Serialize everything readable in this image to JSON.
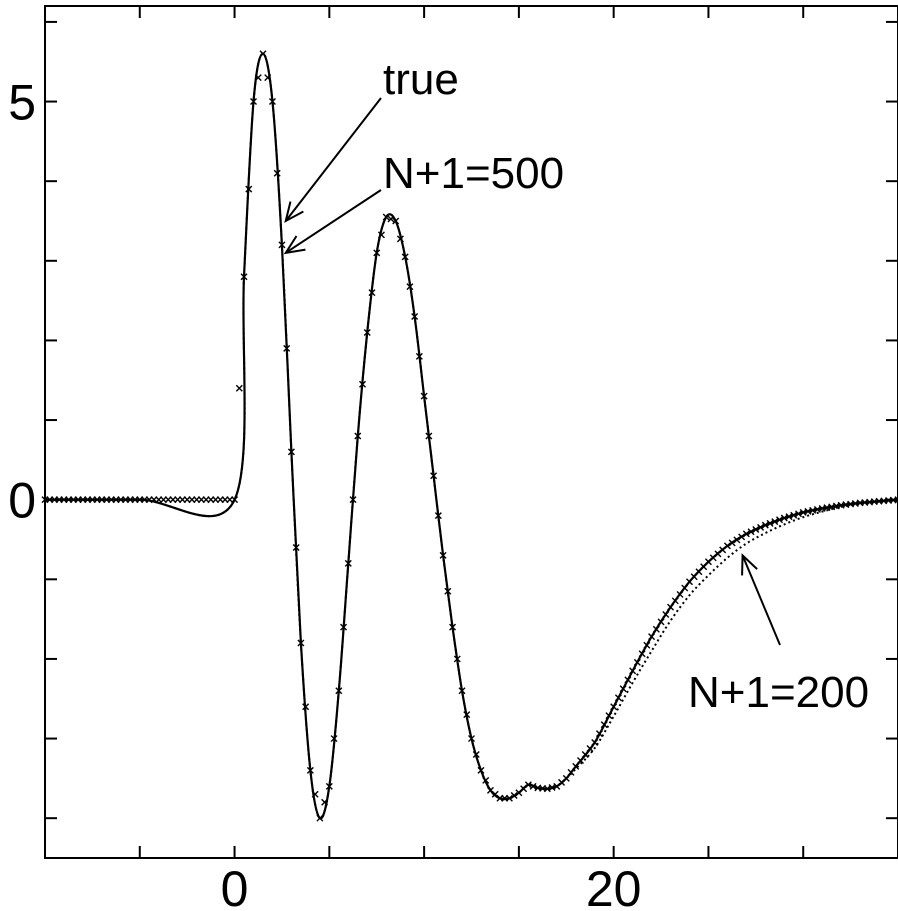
{
  "chart_data": {
    "type": "line",
    "title": "",
    "xlabel": "",
    "ylabel": "",
    "xlim": [
      -10,
      35
    ],
    "ylim": [
      -4.5,
      6.2
    ],
    "x_ticks_labeled": [
      0,
      20
    ],
    "x_tick_labels": [
      "0",
      "20"
    ],
    "y_ticks_labeled": [
      0,
      5
    ],
    "y_tick_labels": [
      "0",
      "5"
    ],
    "x_minor_step": 5,
    "y_minor_step": 1,
    "grid": false,
    "legend": "none",
    "series": [
      {
        "name": "true",
        "style": "solid",
        "x": [
          -10,
          -5,
          0,
          0.5,
          1,
          1.5,
          2,
          2.5,
          3,
          3.5,
          4,
          4.5,
          5,
          5.5,
          6,
          6.5,
          7,
          7.5,
          8,
          8.5,
          9,
          9.5,
          10,
          10.5,
          11,
          11.5,
          12,
          12.5,
          13,
          13.5,
          14,
          14.5,
          15,
          15.5,
          16,
          16.5,
          17,
          17.5,
          18,
          19,
          20,
          21,
          22,
          23,
          24,
          25,
          26,
          27,
          28,
          29,
          30,
          31,
          32,
          33,
          34,
          35
        ],
        "y": [
          0,
          0,
          0,
          2.8,
          5.0,
          5.6,
          5.0,
          3.2,
          0.6,
          -1.8,
          -3.4,
          -4.0,
          -3.6,
          -2.4,
          -0.8,
          0.8,
          2.1,
          3.1,
          3.55,
          3.5,
          3.05,
          2.3,
          1.3,
          0.3,
          -0.7,
          -1.6,
          -2.4,
          -3.0,
          -3.4,
          -3.65,
          -3.75,
          -3.75,
          -3.68,
          -3.58,
          -3.62,
          -3.63,
          -3.6,
          -3.5,
          -3.35,
          -3.05,
          -2.6,
          -2.15,
          -1.72,
          -1.35,
          -1.03,
          -0.78,
          -0.58,
          -0.43,
          -0.32,
          -0.23,
          -0.16,
          -0.11,
          -0.07,
          -0.04,
          -0.02,
          0
        ]
      },
      {
        "name": "N+1=500",
        "style": "markers-x",
        "x": [
          -10,
          -5,
          0,
          0.5,
          1,
          1.5,
          2,
          2.5,
          3,
          3.5,
          4,
          4.5,
          5,
          5.5,
          6,
          6.5,
          7,
          7.5,
          8,
          8.5,
          9,
          9.5,
          10,
          10.5,
          11,
          11.5,
          12,
          12.5,
          13,
          13.5,
          14,
          14.5,
          15,
          15.5,
          16,
          16.5,
          17,
          17.5,
          18,
          19,
          20,
          21,
          22,
          23,
          24,
          25,
          26,
          27,
          28,
          29,
          30,
          31,
          32,
          33,
          34,
          35
        ],
        "y": [
          0,
          0,
          0,
          2.8,
          5.0,
          5.6,
          5.0,
          3.2,
          0.6,
          -1.8,
          -3.4,
          -4.0,
          -3.6,
          -2.4,
          -0.8,
          0.8,
          2.1,
          3.1,
          3.55,
          3.5,
          3.05,
          2.3,
          1.3,
          0.3,
          -0.7,
          -1.6,
          -2.4,
          -3.0,
          -3.4,
          -3.65,
          -3.75,
          -3.75,
          -3.68,
          -3.58,
          -3.62,
          -3.63,
          -3.6,
          -3.5,
          -3.35,
          -3.05,
          -2.6,
          -2.15,
          -1.72,
          -1.35,
          -1.03,
          -0.78,
          -0.58,
          -0.43,
          -0.32,
          -0.23,
          -0.16,
          -0.11,
          -0.07,
          -0.04,
          -0.02,
          0
        ]
      },
      {
        "name": "N+1=200",
        "style": "dotted",
        "x": [
          -10,
          -5,
          0,
          0.5,
          1,
          1.5,
          2,
          2.5,
          3,
          3.5,
          4,
          4.5,
          5,
          5.5,
          6,
          6.5,
          7,
          7.5,
          8,
          8.5,
          9,
          9.5,
          10,
          10.5,
          11,
          11.5,
          12,
          12.5,
          13,
          13.5,
          14,
          14.5,
          15,
          15.5,
          16,
          16.5,
          17,
          17.5,
          18,
          19,
          20,
          21,
          22,
          23,
          24,
          25,
          26,
          27,
          28,
          29,
          30,
          31,
          32,
          33,
          34,
          35
        ],
        "y": [
          0,
          0,
          0,
          2.8,
          5.0,
          5.6,
          5.0,
          3.2,
          0.6,
          -1.8,
          -3.4,
          -4.0,
          -3.6,
          -2.4,
          -0.8,
          0.8,
          2.1,
          3.1,
          3.55,
          3.5,
          3.05,
          2.3,
          1.3,
          0.3,
          -0.7,
          -1.6,
          -2.4,
          -3.0,
          -3.4,
          -3.65,
          -3.75,
          -3.75,
          -3.68,
          -3.58,
          -3.62,
          -3.63,
          -3.6,
          -3.5,
          -3.38,
          -3.12,
          -2.72,
          -2.3,
          -1.9,
          -1.52,
          -1.2,
          -0.95,
          -0.73,
          -0.55,
          -0.42,
          -0.31,
          -0.22,
          -0.15,
          -0.09,
          -0.05,
          -0.02,
          0
        ]
      }
    ],
    "annotations": [
      {
        "text": "true",
        "points_to": [
          2.7,
          3.5
        ]
      },
      {
        "text": "N+1=500",
        "points_to": [
          2.7,
          3.1
        ]
      },
      {
        "text": "N+1=200",
        "points_to": [
          26.8,
          -0.7
        ]
      }
    ]
  }
}
